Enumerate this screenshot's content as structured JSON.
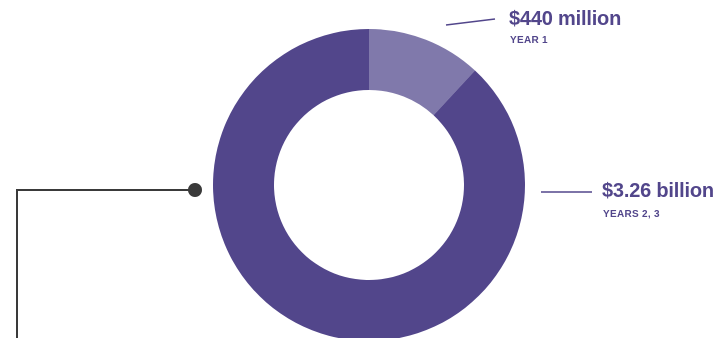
{
  "colors": {
    "slice_year1": "#8079ab",
    "slice_years23": "#52468b",
    "label_text": "#52468b",
    "leader_line": "#52468b",
    "connector": "#3a3a3a"
  },
  "chart_data": {
    "type": "pie",
    "title": "",
    "slices": [
      {
        "label": "YEAR 1",
        "value": 440,
        "display_value": "$440 million"
      },
      {
        "label": "YEARS 2, 3",
        "value": 3260,
        "display_value": "$3.26 billion"
      }
    ],
    "legend": "none"
  }
}
